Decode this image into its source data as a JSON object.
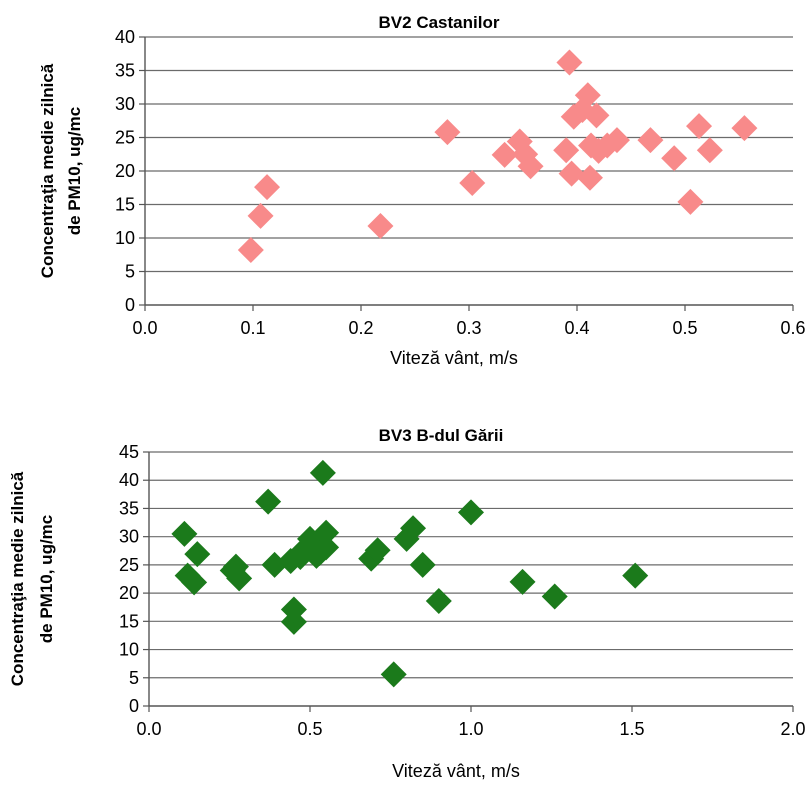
{
  "chart_data": [
    {
      "type": "scatter",
      "title": "BV2 Castanilor",
      "xlabel": "Viteză vânt, m/s",
      "ylabel_lines": [
        "Concentraţia medie zilnică",
        "de PM10, ug/mc"
      ],
      "xlim": [
        0.0,
        0.6
      ],
      "ylim": [
        0,
        40
      ],
      "xticks": [
        "0.0",
        "0.1",
        "0.2",
        "0.3",
        "0.4",
        "0.5",
        "0.6"
      ],
      "yticks": [
        "0",
        "5",
        "10",
        "15",
        "20",
        "25",
        "30",
        "35",
        "40"
      ],
      "grid": "horizontal",
      "legend": "none",
      "marker": "diamond",
      "color": "#F88A8A",
      "points": [
        {
          "x": 0.098,
          "y": 8.2
        },
        {
          "x": 0.107,
          "y": 13.3
        },
        {
          "x": 0.113,
          "y": 17.6
        },
        {
          "x": 0.218,
          "y": 11.8
        },
        {
          "x": 0.28,
          "y": 25.8
        },
        {
          "x": 0.303,
          "y": 18.2
        },
        {
          "x": 0.333,
          "y": 22.4
        },
        {
          "x": 0.347,
          "y": 24.4
        },
        {
          "x": 0.352,
          "y": 22.5
        },
        {
          "x": 0.357,
          "y": 20.7
        },
        {
          "x": 0.39,
          "y": 23.1
        },
        {
          "x": 0.393,
          "y": 36.2
        },
        {
          "x": 0.395,
          "y": 19.6
        },
        {
          "x": 0.397,
          "y": 28.1
        },
        {
          "x": 0.405,
          "y": 29.1
        },
        {
          "x": 0.41,
          "y": 31.3
        },
        {
          "x": 0.412,
          "y": 19.0
        },
        {
          "x": 0.413,
          "y": 23.8
        },
        {
          "x": 0.418,
          "y": 28.3
        },
        {
          "x": 0.42,
          "y": 23.0
        },
        {
          "x": 0.428,
          "y": 23.8
        },
        {
          "x": 0.437,
          "y": 24.6
        },
        {
          "x": 0.468,
          "y": 24.6
        },
        {
          "x": 0.49,
          "y": 21.9
        },
        {
          "x": 0.505,
          "y": 15.4
        },
        {
          "x": 0.513,
          "y": 26.7
        },
        {
          "x": 0.523,
          "y": 23.1
        },
        {
          "x": 0.555,
          "y": 26.4
        }
      ]
    },
    {
      "type": "scatter",
      "title": "BV3 B-dul Gării",
      "xlabel": "Viteză vânt, m/s",
      "ylabel_lines": [
        "Concentraţia medie zilnică",
        "de PM10, ug/mc"
      ],
      "xlim": [
        0.0,
        2.0
      ],
      "ylim": [
        0,
        45
      ],
      "xticks": [
        "0.0",
        "0.5",
        "1.0",
        "1.5",
        "2.0"
      ],
      "yticks": [
        "0",
        "5",
        "10",
        "15",
        "20",
        "25",
        "30",
        "35",
        "40",
        "45"
      ],
      "grid": "horizontal",
      "legend": "none",
      "marker": "diamond",
      "color": "#1B7A1B",
      "points": [
        {
          "x": 0.11,
          "y": 30.5
        },
        {
          "x": 0.12,
          "y": 23.1
        },
        {
          "x": 0.14,
          "y": 21.9
        },
        {
          "x": 0.15,
          "y": 26.9
        },
        {
          "x": 0.26,
          "y": 24.0
        },
        {
          "x": 0.27,
          "y": 24.7
        },
        {
          "x": 0.28,
          "y": 22.6
        },
        {
          "x": 0.37,
          "y": 36.2
        },
        {
          "x": 0.39,
          "y": 25.0
        },
        {
          "x": 0.44,
          "y": 25.7
        },
        {
          "x": 0.45,
          "y": 14.9
        },
        {
          "x": 0.45,
          "y": 17.1
        },
        {
          "x": 0.47,
          "y": 26.4
        },
        {
          "x": 0.48,
          "y": 27.6
        },
        {
          "x": 0.5,
          "y": 29.6
        },
        {
          "x": 0.51,
          "y": 28.1
        },
        {
          "x": 0.52,
          "y": 26.6
        },
        {
          "x": 0.53,
          "y": 27.1
        },
        {
          "x": 0.54,
          "y": 41.3
        },
        {
          "x": 0.55,
          "y": 30.7
        },
        {
          "x": 0.55,
          "y": 28.1
        },
        {
          "x": 0.69,
          "y": 26.1
        },
        {
          "x": 0.71,
          "y": 27.6
        },
        {
          "x": 0.76,
          "y": 5.6
        },
        {
          "x": 0.8,
          "y": 29.6
        },
        {
          "x": 0.82,
          "y": 31.5
        },
        {
          "x": 0.85,
          "y": 25.0
        },
        {
          "x": 0.9,
          "y": 18.6
        },
        {
          "x": 1.0,
          "y": 34.3
        },
        {
          "x": 1.16,
          "y": 22.0
        },
        {
          "x": 1.26,
          "y": 19.4
        },
        {
          "x": 1.51,
          "y": 23.1
        }
      ]
    }
  ]
}
